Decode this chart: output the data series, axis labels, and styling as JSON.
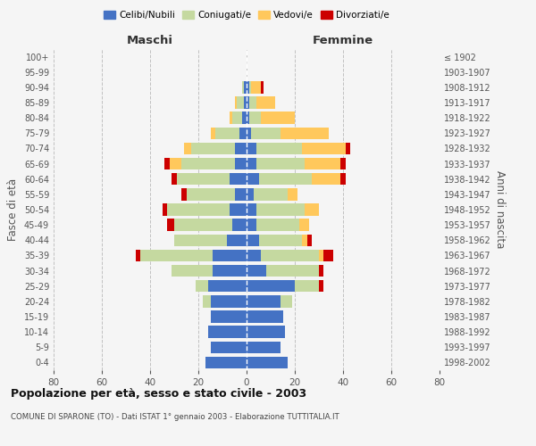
{
  "age_groups": [
    "0-4",
    "5-9",
    "10-14",
    "15-19",
    "20-24",
    "25-29",
    "30-34",
    "35-39",
    "40-44",
    "45-49",
    "50-54",
    "55-59",
    "60-64",
    "65-69",
    "70-74",
    "75-79",
    "80-84",
    "85-89",
    "90-94",
    "95-99",
    "100+"
  ],
  "birth_years": [
    "1998-2002",
    "1993-1997",
    "1988-1992",
    "1983-1987",
    "1978-1982",
    "1973-1977",
    "1968-1972",
    "1963-1967",
    "1958-1962",
    "1953-1957",
    "1948-1952",
    "1943-1947",
    "1938-1942",
    "1933-1937",
    "1928-1932",
    "1923-1927",
    "1918-1922",
    "1913-1917",
    "1908-1912",
    "1903-1907",
    "≤ 1902"
  ],
  "colors": {
    "celibe": "#4472C4",
    "coniugato": "#c5d9a0",
    "vedovo": "#ffc85c",
    "divorziato": "#cc0000"
  },
  "maschi": {
    "celibe": [
      17,
      15,
      16,
      15,
      15,
      16,
      14,
      14,
      8,
      6,
      7,
      5,
      7,
      5,
      5,
      3,
      2,
      1,
      1,
      0,
      0
    ],
    "coniugato": [
      0,
      0,
      0,
      0,
      3,
      5,
      17,
      30,
      22,
      24,
      26,
      20,
      22,
      22,
      18,
      10,
      4,
      3,
      1,
      0,
      0
    ],
    "vedovo": [
      0,
      0,
      0,
      0,
      0,
      0,
      0,
      0,
      0,
      0,
      0,
      0,
      0,
      5,
      3,
      2,
      1,
      1,
      0,
      0,
      0
    ],
    "divorziato": [
      0,
      0,
      0,
      0,
      0,
      0,
      0,
      2,
      0,
      3,
      2,
      2,
      2,
      2,
      0,
      0,
      0,
      0,
      0,
      0,
      0
    ]
  },
  "femmine": {
    "nubile": [
      17,
      14,
      16,
      15,
      14,
      20,
      8,
      6,
      5,
      4,
      4,
      3,
      5,
      4,
      4,
      2,
      1,
      1,
      1,
      0,
      0
    ],
    "coniugata": [
      0,
      0,
      0,
      0,
      5,
      10,
      22,
      24,
      18,
      18,
      20,
      14,
      22,
      20,
      19,
      12,
      5,
      3,
      1,
      0,
      0
    ],
    "vedova": [
      0,
      0,
      0,
      0,
      0,
      0,
      0,
      2,
      2,
      4,
      6,
      4,
      12,
      15,
      18,
      20,
      14,
      8,
      4,
      0,
      0
    ],
    "divorziata": [
      0,
      0,
      0,
      0,
      0,
      2,
      2,
      4,
      2,
      0,
      0,
      0,
      2,
      2,
      2,
      0,
      0,
      0,
      1,
      0,
      0
    ]
  },
  "xlim": 80,
  "title": "Popolazione per età, sesso e stato civile - 2003",
  "subtitle": "COMUNE DI SPARONE (TO) - Dati ISTAT 1° gennaio 2003 - Elaborazione TUTTITALIA.IT",
  "ylabel_left": "Fasce di età",
  "ylabel_right": "Anni di nascita",
  "xlabel_maschi": "Maschi",
  "xlabel_femmine": "Femmine",
  "legend_labels": [
    "Celibi/Nubili",
    "Coniugati/e",
    "Vedovi/e",
    "Divorziati/e"
  ],
  "background_color": "#f5f5f5",
  "grid_color": "#bbbbbb"
}
